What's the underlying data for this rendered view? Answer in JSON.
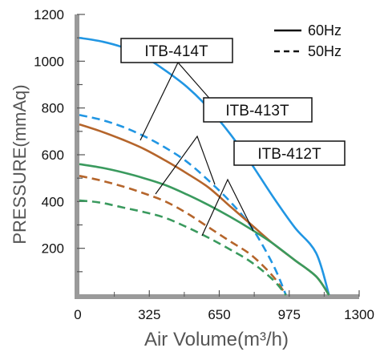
{
  "chart_data": {
    "type": "line",
    "title": "",
    "xlabel": "Air Volume(m³/h)",
    "ylabel": "PRESSURE(mmAq)",
    "xlim": [
      0,
      1300
    ],
    "ylim": [
      0,
      1200
    ],
    "xticks": [
      0,
      325,
      650,
      975,
      1300
    ],
    "xtick_labels": [
      "0",
      "325",
      "650",
      "975",
      "1300"
    ],
    "yticks": [
      200,
      400,
      600,
      800,
      1000,
      1200
    ],
    "ytick_labels": [
      "200",
      "400",
      "600",
      "800",
      "1000",
      "1200"
    ],
    "grid": false,
    "legend": {
      "position": "top-right",
      "entries": [
        {
          "label": "60Hz",
          "style": "solid"
        },
        {
          "label": "50Hz",
          "style": "dashed"
        }
      ]
    },
    "model_labels": [
      "ITB-414T",
      "ITB-413T",
      "ITB-412T"
    ],
    "series": [
      {
        "model": "ITB-414T",
        "freq": "60Hz",
        "color": "#2196e3",
        "dash": false,
        "x": [
          0,
          100,
          200,
          300,
          400,
          500,
          600,
          700,
          800,
          900,
          1000,
          1100,
          1160
        ],
        "y": [
          1100,
          1085,
          1060,
          1020,
          960,
          890,
          800,
          690,
          560,
          420,
          290,
          180,
          0
        ]
      },
      {
        "model": "ITB-414T",
        "freq": "50Hz",
        "color": "#2196e3",
        "dash": true,
        "x": [
          0,
          100,
          200,
          300,
          400,
          500,
          600,
          700,
          800,
          900,
          960
        ],
        "y": [
          770,
          750,
          720,
          680,
          630,
          570,
          490,
          400,
          290,
          130,
          0
        ]
      },
      {
        "model": "ITB-413T",
        "freq": "60Hz",
        "color": "#b5652b",
        "dash": false,
        "x": [
          0,
          100,
          200,
          300,
          400,
          500,
          600,
          700,
          800,
          900,
          1000,
          1100,
          1160
        ],
        "y": [
          730,
          700,
          665,
          625,
          575,
          520,
          460,
          380,
          300,
          220,
          150,
          80,
          0
        ]
      },
      {
        "model": "ITB-413T",
        "freq": "50Hz",
        "color": "#b5652b",
        "dash": true,
        "x": [
          0,
          100,
          200,
          300,
          400,
          500,
          600,
          700,
          800,
          900,
          960
        ],
        "y": [
          510,
          490,
          465,
          435,
          400,
          350,
          290,
          230,
          170,
          80,
          0
        ]
      },
      {
        "model": "ITB-412T",
        "freq": "60Hz",
        "color": "#3a9a5e",
        "dash": false,
        "x": [
          0,
          100,
          200,
          300,
          400,
          500,
          600,
          700,
          800,
          900,
          1000,
          1100,
          1160
        ],
        "y": [
          560,
          545,
          525,
          500,
          470,
          430,
          385,
          335,
          280,
          220,
          150,
          80,
          0
        ]
      },
      {
        "model": "ITB-412T",
        "freq": "50Hz",
        "color": "#3a9a5e",
        "dash": true,
        "x": [
          0,
          100,
          200,
          300,
          400,
          500,
          600,
          700,
          800,
          900,
          960
        ],
        "y": [
          405,
          395,
          375,
          355,
          330,
          290,
          245,
          195,
          140,
          65,
          0
        ]
      }
    ]
  }
}
